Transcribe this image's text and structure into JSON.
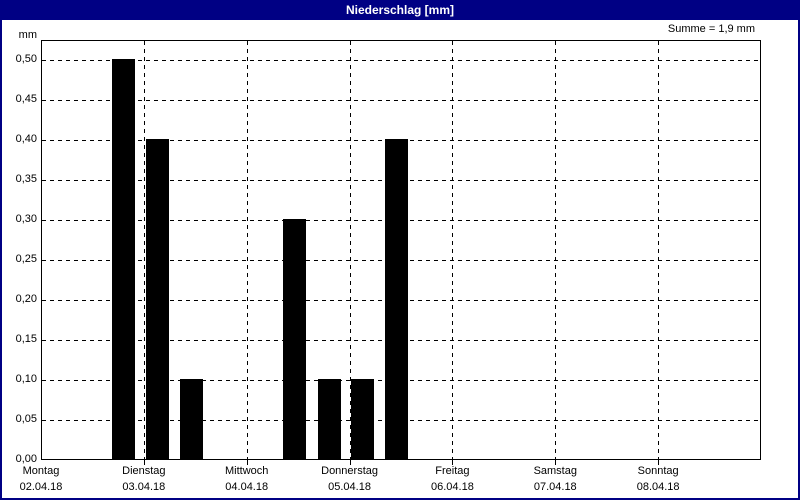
{
  "window": {
    "title": "Niederschlag [mm]"
  },
  "chart_data": {
    "type": "bar",
    "title": "Niederschlag [mm]",
    "unit_label": "mm",
    "summary_label": "Summe = 1,9 mm",
    "sum_value_mm": 1.9,
    "ylabel": "mm",
    "xlabel": "",
    "ylim": [
      0,
      0.5
    ],
    "ytick_step": 0.05,
    "grid": "dashed",
    "legend": "none",
    "yticks": [
      {
        "value": 0.5,
        "label": "0,50"
      },
      {
        "value": 0.45,
        "label": "0,45"
      },
      {
        "value": 0.4,
        "label": "0,40"
      },
      {
        "value": 0.35,
        "label": "0,35"
      },
      {
        "value": 0.3,
        "label": "0,30"
      },
      {
        "value": 0.25,
        "label": "0,25"
      },
      {
        "value": 0.2,
        "label": "0,20"
      },
      {
        "value": 0.15,
        "label": "0,15"
      },
      {
        "value": 0.1,
        "label": "0,10"
      },
      {
        "value": 0.05,
        "label": "0,05"
      },
      {
        "value": 0.0,
        "label": "0,00"
      }
    ],
    "days": [
      {
        "weekday": "Montag",
        "date": "02.04.18"
      },
      {
        "weekday": "Dienstag",
        "date": "03.04.18"
      },
      {
        "weekday": "Mittwoch",
        "date": "04.04.18"
      },
      {
        "weekday": "Donnerstag",
        "date": "05.04.18"
      },
      {
        "weekday": "Freitag",
        "date": "06.04.18"
      },
      {
        "weekday": "Samstag",
        "date": "07.04.18"
      },
      {
        "weekday": "Sonntag",
        "date": "08.04.18"
      }
    ],
    "bars": [
      {
        "day_offset": 0.8,
        "value_mm": 0.5
      },
      {
        "day_offset": 1.13,
        "value_mm": 0.4
      },
      {
        "day_offset": 1.46,
        "value_mm": 0.1
      },
      {
        "day_offset": 2.46,
        "value_mm": 0.3
      },
      {
        "day_offset": 2.8,
        "value_mm": 0.1
      },
      {
        "day_offset": 3.13,
        "value_mm": 0.1
      },
      {
        "day_offset": 3.46,
        "value_mm": 0.4
      }
    ]
  },
  "colors": {
    "titlebar_bg": "#000084",
    "titlebar_text": "#ffffff",
    "window_border": "#000084",
    "plot_border": "#000000",
    "grid_color": "#000000",
    "bar_color": "#000000",
    "background": "#ffffff",
    "text": "#000000"
  }
}
